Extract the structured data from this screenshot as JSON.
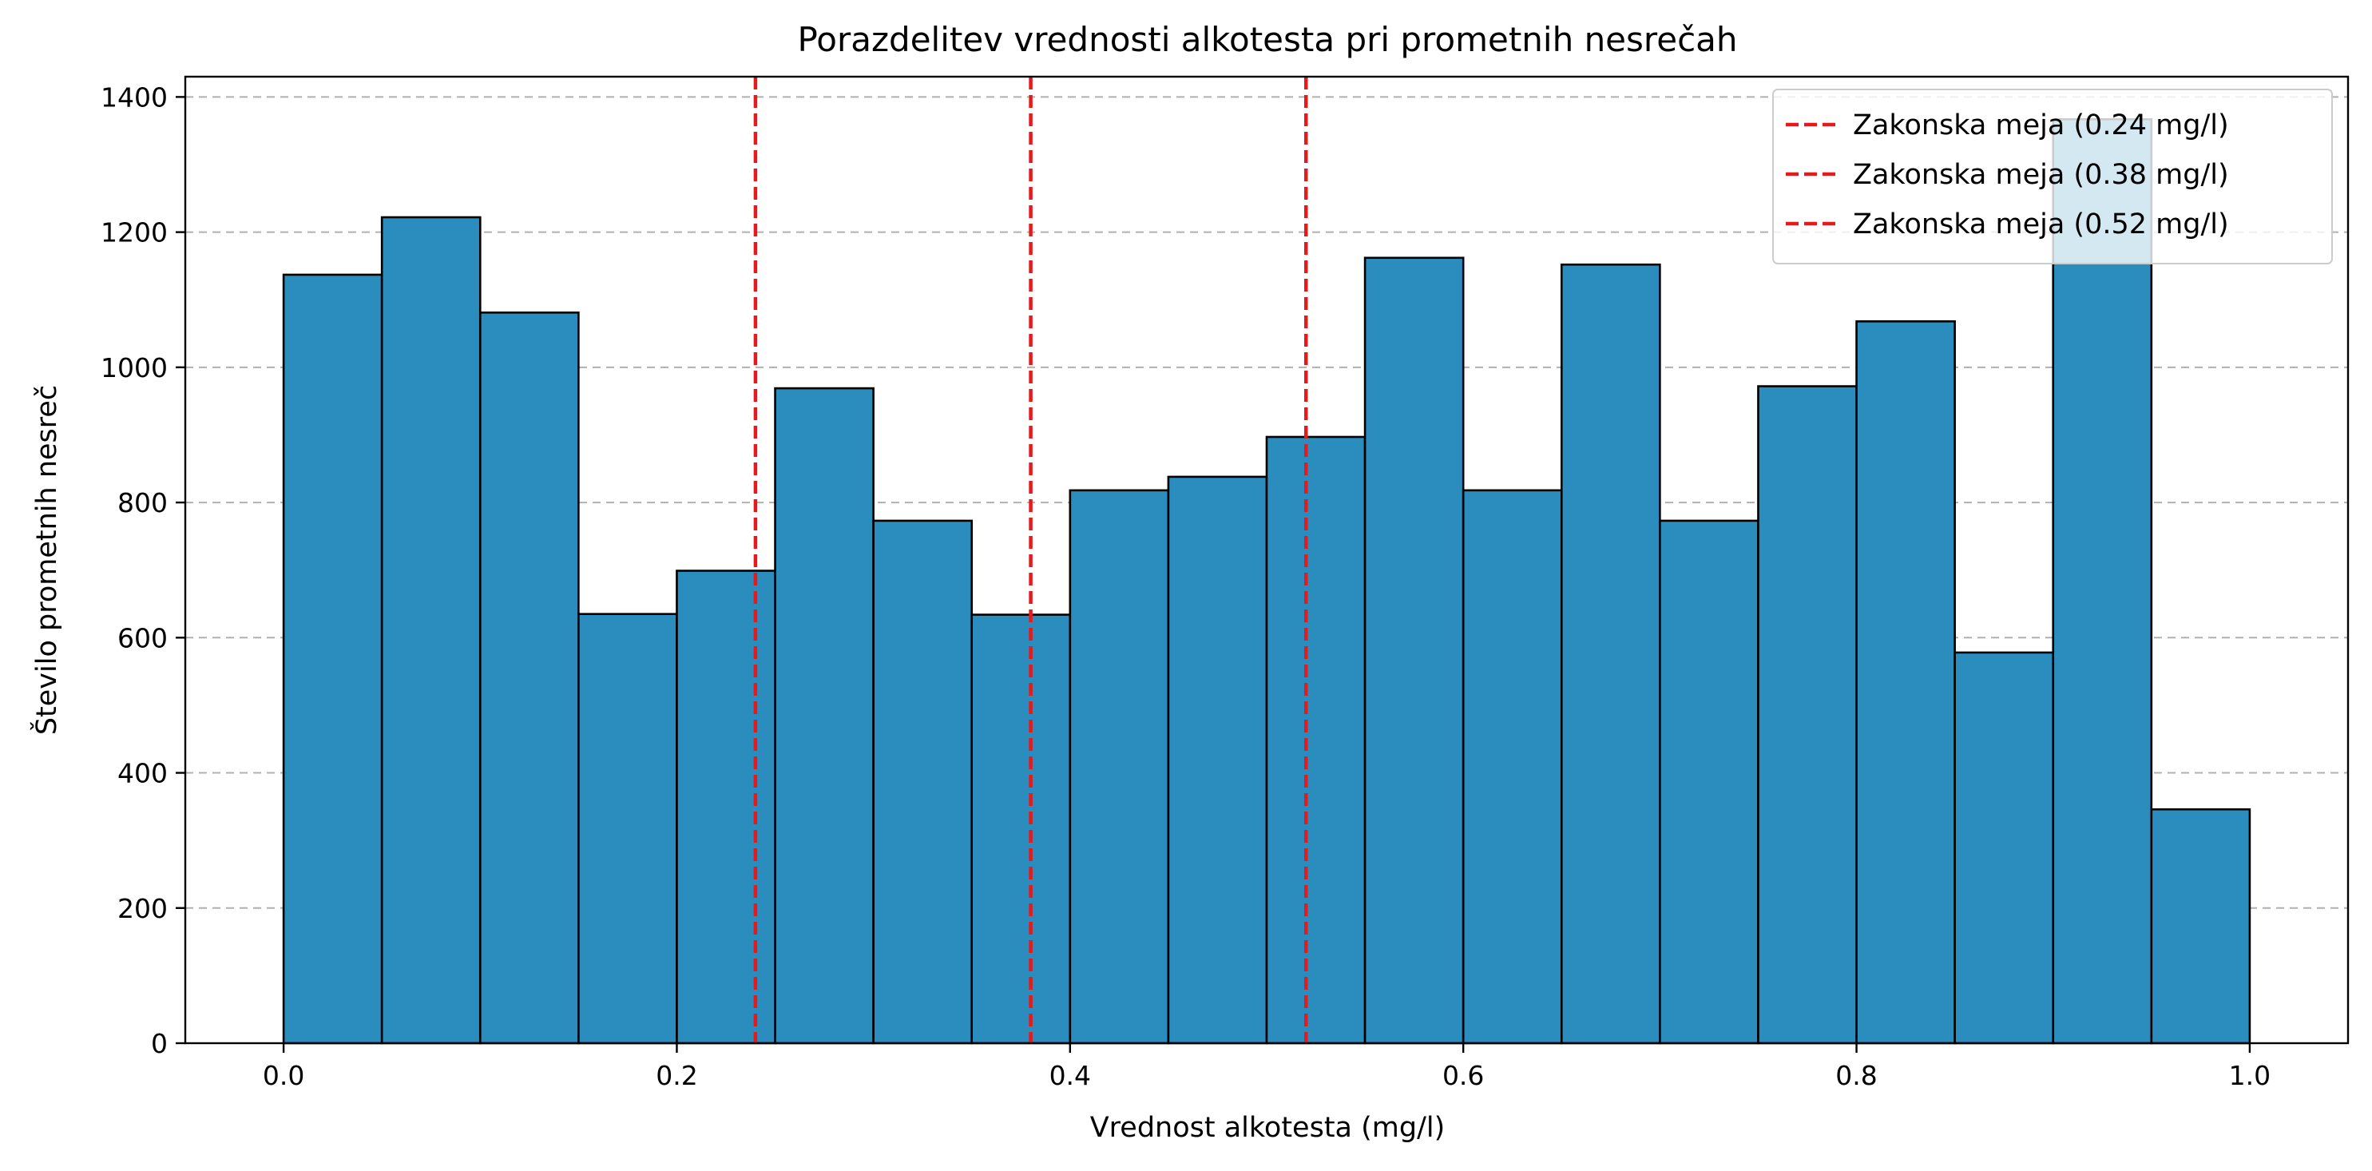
{
  "chart_data": {
    "type": "bar",
    "title": "Porazdelitev vrednosti alkotesta pri prometnih nesrečah",
    "xlabel": "Vrednost alkotesta (mg/l)",
    "ylabel": "Število prometnih nesreč",
    "xlim": [
      -0.05,
      1.05
    ],
    "ylim": [
      0,
      1430
    ],
    "x_ticks": [
      "0.0",
      "0.2",
      "0.4",
      "0.6",
      "0.8",
      "1.0"
    ],
    "y_ticks": [
      "0",
      "200",
      "400",
      "600",
      "800",
      "1000",
      "1200",
      "1400"
    ],
    "grid": "y-dashed",
    "bins": [
      {
        "start": 0.0,
        "end": 0.05,
        "count": 1137
      },
      {
        "start": 0.05,
        "end": 0.1,
        "count": 1222
      },
      {
        "start": 0.1,
        "end": 0.15,
        "count": 1081
      },
      {
        "start": 0.15,
        "end": 0.2,
        "count": 635
      },
      {
        "start": 0.2,
        "end": 0.25,
        "count": 699
      },
      {
        "start": 0.25,
        "end": 0.3,
        "count": 969
      },
      {
        "start": 0.3,
        "end": 0.35,
        "count": 773
      },
      {
        "start": 0.35,
        "end": 0.4,
        "count": 634
      },
      {
        "start": 0.4,
        "end": 0.45,
        "count": 818
      },
      {
        "start": 0.45,
        "end": 0.5,
        "count": 838
      },
      {
        "start": 0.5,
        "end": 0.55,
        "count": 897
      },
      {
        "start": 0.55,
        "end": 0.6,
        "count": 1162
      },
      {
        "start": 0.6,
        "end": 0.65,
        "count": 818
      },
      {
        "start": 0.65,
        "end": 0.7,
        "count": 1152
      },
      {
        "start": 0.7,
        "end": 0.75,
        "count": 773
      },
      {
        "start": 0.75,
        "end": 0.8,
        "count": 972
      },
      {
        "start": 0.8,
        "end": 0.85,
        "count": 1068
      },
      {
        "start": 0.85,
        "end": 0.9,
        "count": 578
      },
      {
        "start": 0.9,
        "end": 0.95,
        "count": 1367
      },
      {
        "start": 0.95,
        "end": 1.0,
        "count": 346
      }
    ],
    "bar_color": "#2b8cbe",
    "bar_edge_color": "#000000",
    "reference_lines": [
      {
        "x": 0.24,
        "label": "Zakonska meja (0.24 mg/l)",
        "color": "#e41a1c",
        "style": "dashed"
      },
      {
        "x": 0.38,
        "label": "Zakonska meja (0.38 mg/l)",
        "color": "#e41a1c",
        "style": "dashed"
      },
      {
        "x": 0.52,
        "label": "Zakonska meja (0.52 mg/l)",
        "color": "#e41a1c",
        "style": "dashed"
      }
    ],
    "legend_position": "top-right"
  }
}
